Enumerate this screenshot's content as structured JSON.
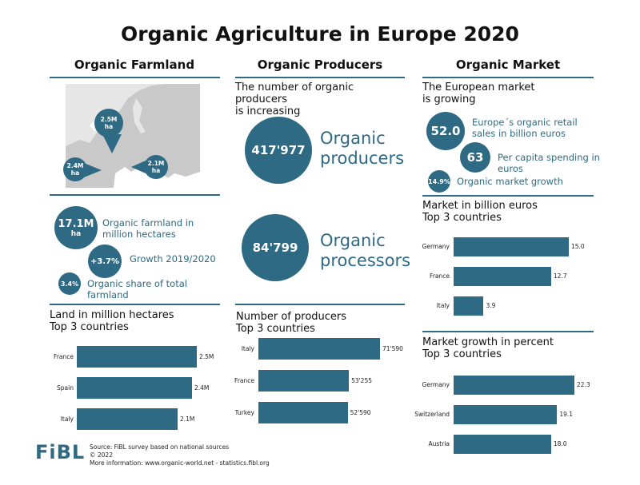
{
  "title": "Organic Agriculture in Europe 2020",
  "columns": {
    "farmland": "Organic Farmland",
    "producers": "Organic Producers",
    "market": "Organic Market"
  },
  "map": {
    "pins": [
      {
        "value": "2.5M",
        "unit": "ha"
      },
      {
        "value": "2.4M",
        "unit": "ha"
      },
      {
        "value": "2.1M",
        "unit": "ha"
      }
    ]
  },
  "farmland_stats": [
    {
      "value": "17.1M",
      "unit": "ha",
      "label": "Organic farmland in million hectares"
    },
    {
      "value": "+3.7%",
      "label": "Growth 2019/2020"
    },
    {
      "value": "3.4%",
      "label": "Organic share of total farmland"
    }
  ],
  "producers": {
    "subhead_line1": "The number of organic producers",
    "subhead_line2": "is increasing",
    "producers_value": "417'977",
    "producers_label_line1": "Organic",
    "producers_label_line2": "producers",
    "processors_value": "84'799",
    "processors_label_line1": "Organic",
    "processors_label_line2": "processors"
  },
  "market": {
    "subhead_line1": "The European market",
    "subhead_line2": "is growing",
    "stats": [
      {
        "value": "52.0",
        "label": "Europe´s organic retail sales in billion euros"
      },
      {
        "value": "63",
        "label": "Per capita spending in euros"
      },
      {
        "value": "14.9%",
        "label": "Organic market growth"
      }
    ]
  },
  "chart_data": [
    {
      "type": "bar",
      "title_line1": "Land in million hectares",
      "title_line2": "Top 3 countries",
      "categories": [
        "France",
        "Spain",
        "Italy"
      ],
      "values": [
        2.5,
        2.4,
        2.1
      ],
      "value_labels": [
        "2.5M",
        "2.4M",
        "2.1M"
      ],
      "orientation": "horizontal"
    },
    {
      "type": "bar",
      "title_line1": "Number of producers",
      "title_line2": "Top 3 countries",
      "categories": [
        "Italy",
        "France",
        "Turkey"
      ],
      "values": [
        71590,
        53255,
        52590
      ],
      "value_labels": [
        "71'590",
        "53'255",
        "52'590"
      ],
      "orientation": "horizontal"
    },
    {
      "type": "bar",
      "title_line1": "Market in billion euros",
      "title_line2": "Top 3 countries",
      "categories": [
        "Germany",
        "France",
        "Italy"
      ],
      "values": [
        15.0,
        12.7,
        3.9
      ],
      "value_labels": [
        "15.0",
        "12.7",
        "3.9"
      ],
      "orientation": "horizontal"
    },
    {
      "type": "bar",
      "title_line1": "Market growth in percent",
      "title_line2": "Top 3 countries",
      "categories": [
        "Germany",
        "Switzerland",
        "Austria"
      ],
      "values": [
        22.3,
        19.1,
        18.0
      ],
      "value_labels": [
        "22.3",
        "19.1",
        "18.0"
      ],
      "orientation": "horizontal"
    }
  ],
  "footer": {
    "logo": "FiBL",
    "line1": "Source: FiBL survey based on national sources",
    "line2": "© 2022",
    "line3": "More information: www.organic-world.net - statistics.fibl.org"
  },
  "colors": {
    "accent": "#2e6a84",
    "map_land": "#c9c9c9",
    "map_sea": "#ffffff"
  }
}
